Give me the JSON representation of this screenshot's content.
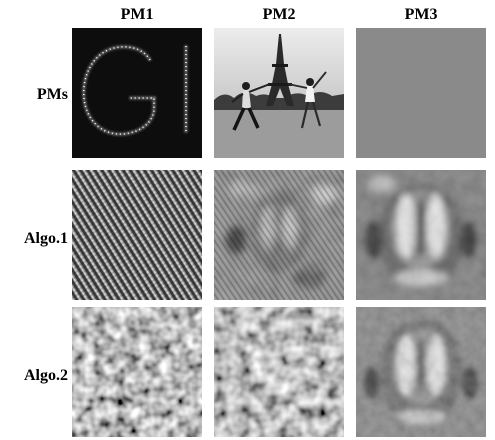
{
  "figure": {
    "columns": [
      "PM1",
      "PM2",
      "PM3"
    ],
    "rows": [
      "PMs",
      "Algo.1",
      "Algo.2"
    ],
    "pm1_letters": "GI"
  }
}
